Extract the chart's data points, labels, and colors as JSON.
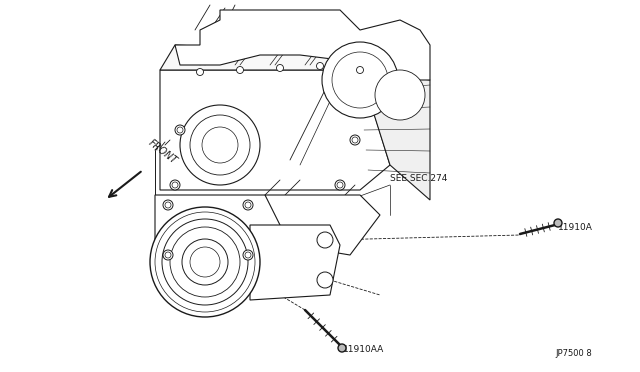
{
  "background_color": "#ffffff",
  "line_color": "#1a1a1a",
  "text_color": "#1a1a1a",
  "labels": {
    "front": "FRONT",
    "see_sec": "SEE SEC.274",
    "part1": "11910A",
    "part2": "11910AA",
    "part_num": "JP7500 8"
  },
  "fig_width": 6.4,
  "fig_height": 3.72,
  "dpi": 100
}
